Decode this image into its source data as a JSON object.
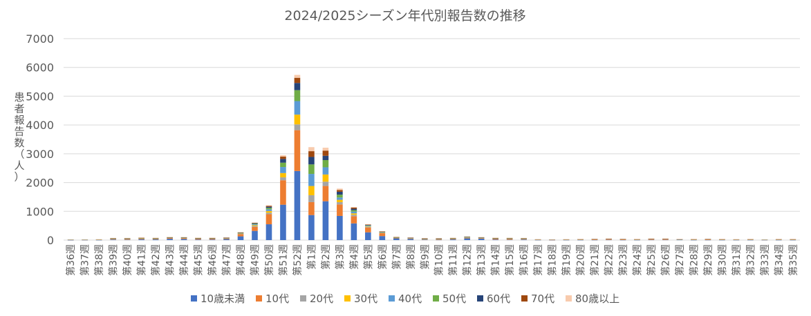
{
  "chart_data": {
    "type": "bar",
    "stacked": true,
    "title": "2024/2025シーズン年代別報告数の推移",
    "ylabel": "患者報告数（人）",
    "xlabel": "",
    "ylim": [
      0,
      7000
    ],
    "yticks": [
      "0",
      "1000",
      "2000",
      "3000",
      "4000",
      "5000",
      "6000",
      "7000"
    ],
    "grid": true,
    "legend_position": "bottom",
    "categories": [
      "第36週",
      "第37週",
      "第38週",
      "第39週",
      "第40週",
      "第41週",
      "第42週",
      "第43週",
      "第44週",
      "第45週",
      "第46週",
      "第47週",
      "第48週",
      "第49週",
      "第50週",
      "第51週",
      "第52週",
      "第1週",
      "第2週",
      "第3週",
      "第4週",
      "第5週",
      "第6週",
      "第7週",
      "第8週",
      "第9週",
      "第10週",
      "第11週",
      "第12週",
      "第13週",
      "第14週",
      "第15週",
      "第16週",
      "第17週",
      "第18週",
      "第19週",
      "第20週",
      "第21週",
      "第22週",
      "第23週",
      "第24週",
      "第25週",
      "第26週",
      "第27週",
      "第28週",
      "第29週",
      "第30週",
      "第31週",
      "第32週",
      "第33週",
      "第34週",
      "第35週"
    ],
    "series": [
      {
        "name": "10歳未満",
        "color": "#4472C4",
        "values": [
          2,
          5,
          4,
          20,
          15,
          30,
          25,
          45,
          40,
          20,
          20,
          35,
          130,
          320,
          550,
          1230,
          2400,
          870,
          1350,
          840,
          580,
          270,
          140,
          60,
          40,
          15,
          10,
          25,
          60,
          50,
          20,
          15,
          20,
          5,
          3,
          5,
          5,
          5,
          10,
          5,
          5,
          10,
          10,
          10,
          5,
          5,
          5,
          5,
          5,
          5,
          5,
          5
        ]
      },
      {
        "name": "10代",
        "color": "#ED7D31",
        "values": [
          8,
          5,
          10,
          20,
          25,
          25,
          20,
          30,
          30,
          30,
          30,
          25,
          80,
          140,
          350,
          850,
          1420,
          450,
          530,
          400,
          250,
          170,
          100,
          20,
          20,
          20,
          25,
          20,
          20,
          20,
          30,
          30,
          20,
          10,
          5,
          10,
          20,
          25,
          30,
          25,
          20,
          30,
          30,
          15,
          20,
          25,
          20,
          10,
          20,
          5,
          20,
          20
        ]
      },
      {
        "name": "20代",
        "color": "#A5A5A5",
        "values": [
          2,
          2,
          2,
          5,
          5,
          5,
          5,
          5,
          5,
          5,
          5,
          5,
          10,
          30,
          50,
          100,
          200,
          240,
          150,
          80,
          50,
          20,
          10,
          5,
          5,
          5,
          5,
          5,
          5,
          5,
          5,
          5,
          5,
          2,
          2,
          2,
          2,
          2,
          2,
          2,
          2,
          2,
          2,
          2,
          2,
          2,
          2,
          2,
          2,
          2,
          2,
          2
        ]
      },
      {
        "name": "30代",
        "color": "#FFC000",
        "values": [
          2,
          2,
          2,
          5,
          5,
          5,
          5,
          5,
          5,
          5,
          5,
          5,
          10,
          30,
          60,
          150,
          340,
          320,
          250,
          80,
          50,
          15,
          10,
          5,
          5,
          5,
          5,
          5,
          5,
          5,
          5,
          5,
          5,
          2,
          2,
          2,
          2,
          2,
          2,
          2,
          2,
          2,
          2,
          2,
          2,
          2,
          2,
          2,
          2,
          2,
          2,
          2
        ]
      },
      {
        "name": "40代",
        "color": "#5B9BD5",
        "values": [
          2,
          2,
          2,
          5,
          5,
          5,
          5,
          5,
          5,
          5,
          5,
          5,
          10,
          30,
          60,
          210,
          470,
          420,
          250,
          80,
          60,
          20,
          10,
          5,
          5,
          5,
          5,
          5,
          20,
          5,
          5,
          5,
          5,
          2,
          2,
          2,
          2,
          2,
          2,
          2,
          2,
          2,
          2,
          2,
          2,
          2,
          2,
          2,
          2,
          2,
          2,
          2
        ]
      },
      {
        "name": "50代",
        "color": "#70AD47",
        "values": [
          2,
          2,
          2,
          5,
          5,
          5,
          5,
          5,
          5,
          5,
          5,
          5,
          10,
          20,
          50,
          150,
          380,
          330,
          250,
          100,
          50,
          15,
          10,
          5,
          5,
          5,
          5,
          5,
          5,
          5,
          5,
          5,
          5,
          2,
          2,
          2,
          2,
          2,
          2,
          2,
          2,
          2,
          2,
          2,
          2,
          2,
          2,
          2,
          2,
          2,
          2,
          2
        ]
      },
      {
        "name": "60代",
        "color": "#264478",
        "values": [
          2,
          2,
          2,
          5,
          5,
          5,
          5,
          5,
          5,
          5,
          5,
          5,
          10,
          20,
          40,
          130,
          250,
          260,
          150,
          100,
          50,
          15,
          10,
          5,
          5,
          5,
          5,
          5,
          5,
          5,
          5,
          5,
          5,
          2,
          2,
          2,
          2,
          2,
          2,
          2,
          2,
          2,
          2,
          2,
          2,
          2,
          2,
          2,
          2,
          2,
          2,
          2
        ]
      },
      {
        "name": "70代",
        "color": "#9E480E",
        "values": [
          2,
          2,
          2,
          5,
          5,
          5,
          5,
          5,
          5,
          5,
          5,
          5,
          10,
          10,
          30,
          80,
          180,
          200,
          180,
          60,
          40,
          15,
          10,
          5,
          5,
          5,
          5,
          5,
          5,
          5,
          5,
          5,
          5,
          2,
          2,
          2,
          2,
          2,
          2,
          2,
          2,
          2,
          2,
          2,
          2,
          2,
          2,
          2,
          2,
          2,
          2,
          2
        ]
      },
      {
        "name": "80歳以上",
        "color": "#F8CBAD",
        "values": [
          2,
          2,
          2,
          5,
          5,
          5,
          5,
          5,
          5,
          5,
          5,
          5,
          10,
          10,
          20,
          50,
          100,
          140,
          100,
          50,
          20,
          10,
          10,
          5,
          5,
          5,
          5,
          5,
          5,
          5,
          5,
          5,
          5,
          2,
          2,
          2,
          2,
          2,
          2,
          2,
          2,
          2,
          2,
          2,
          2,
          2,
          2,
          2,
          2,
          2,
          2,
          2
        ]
      }
    ]
  }
}
